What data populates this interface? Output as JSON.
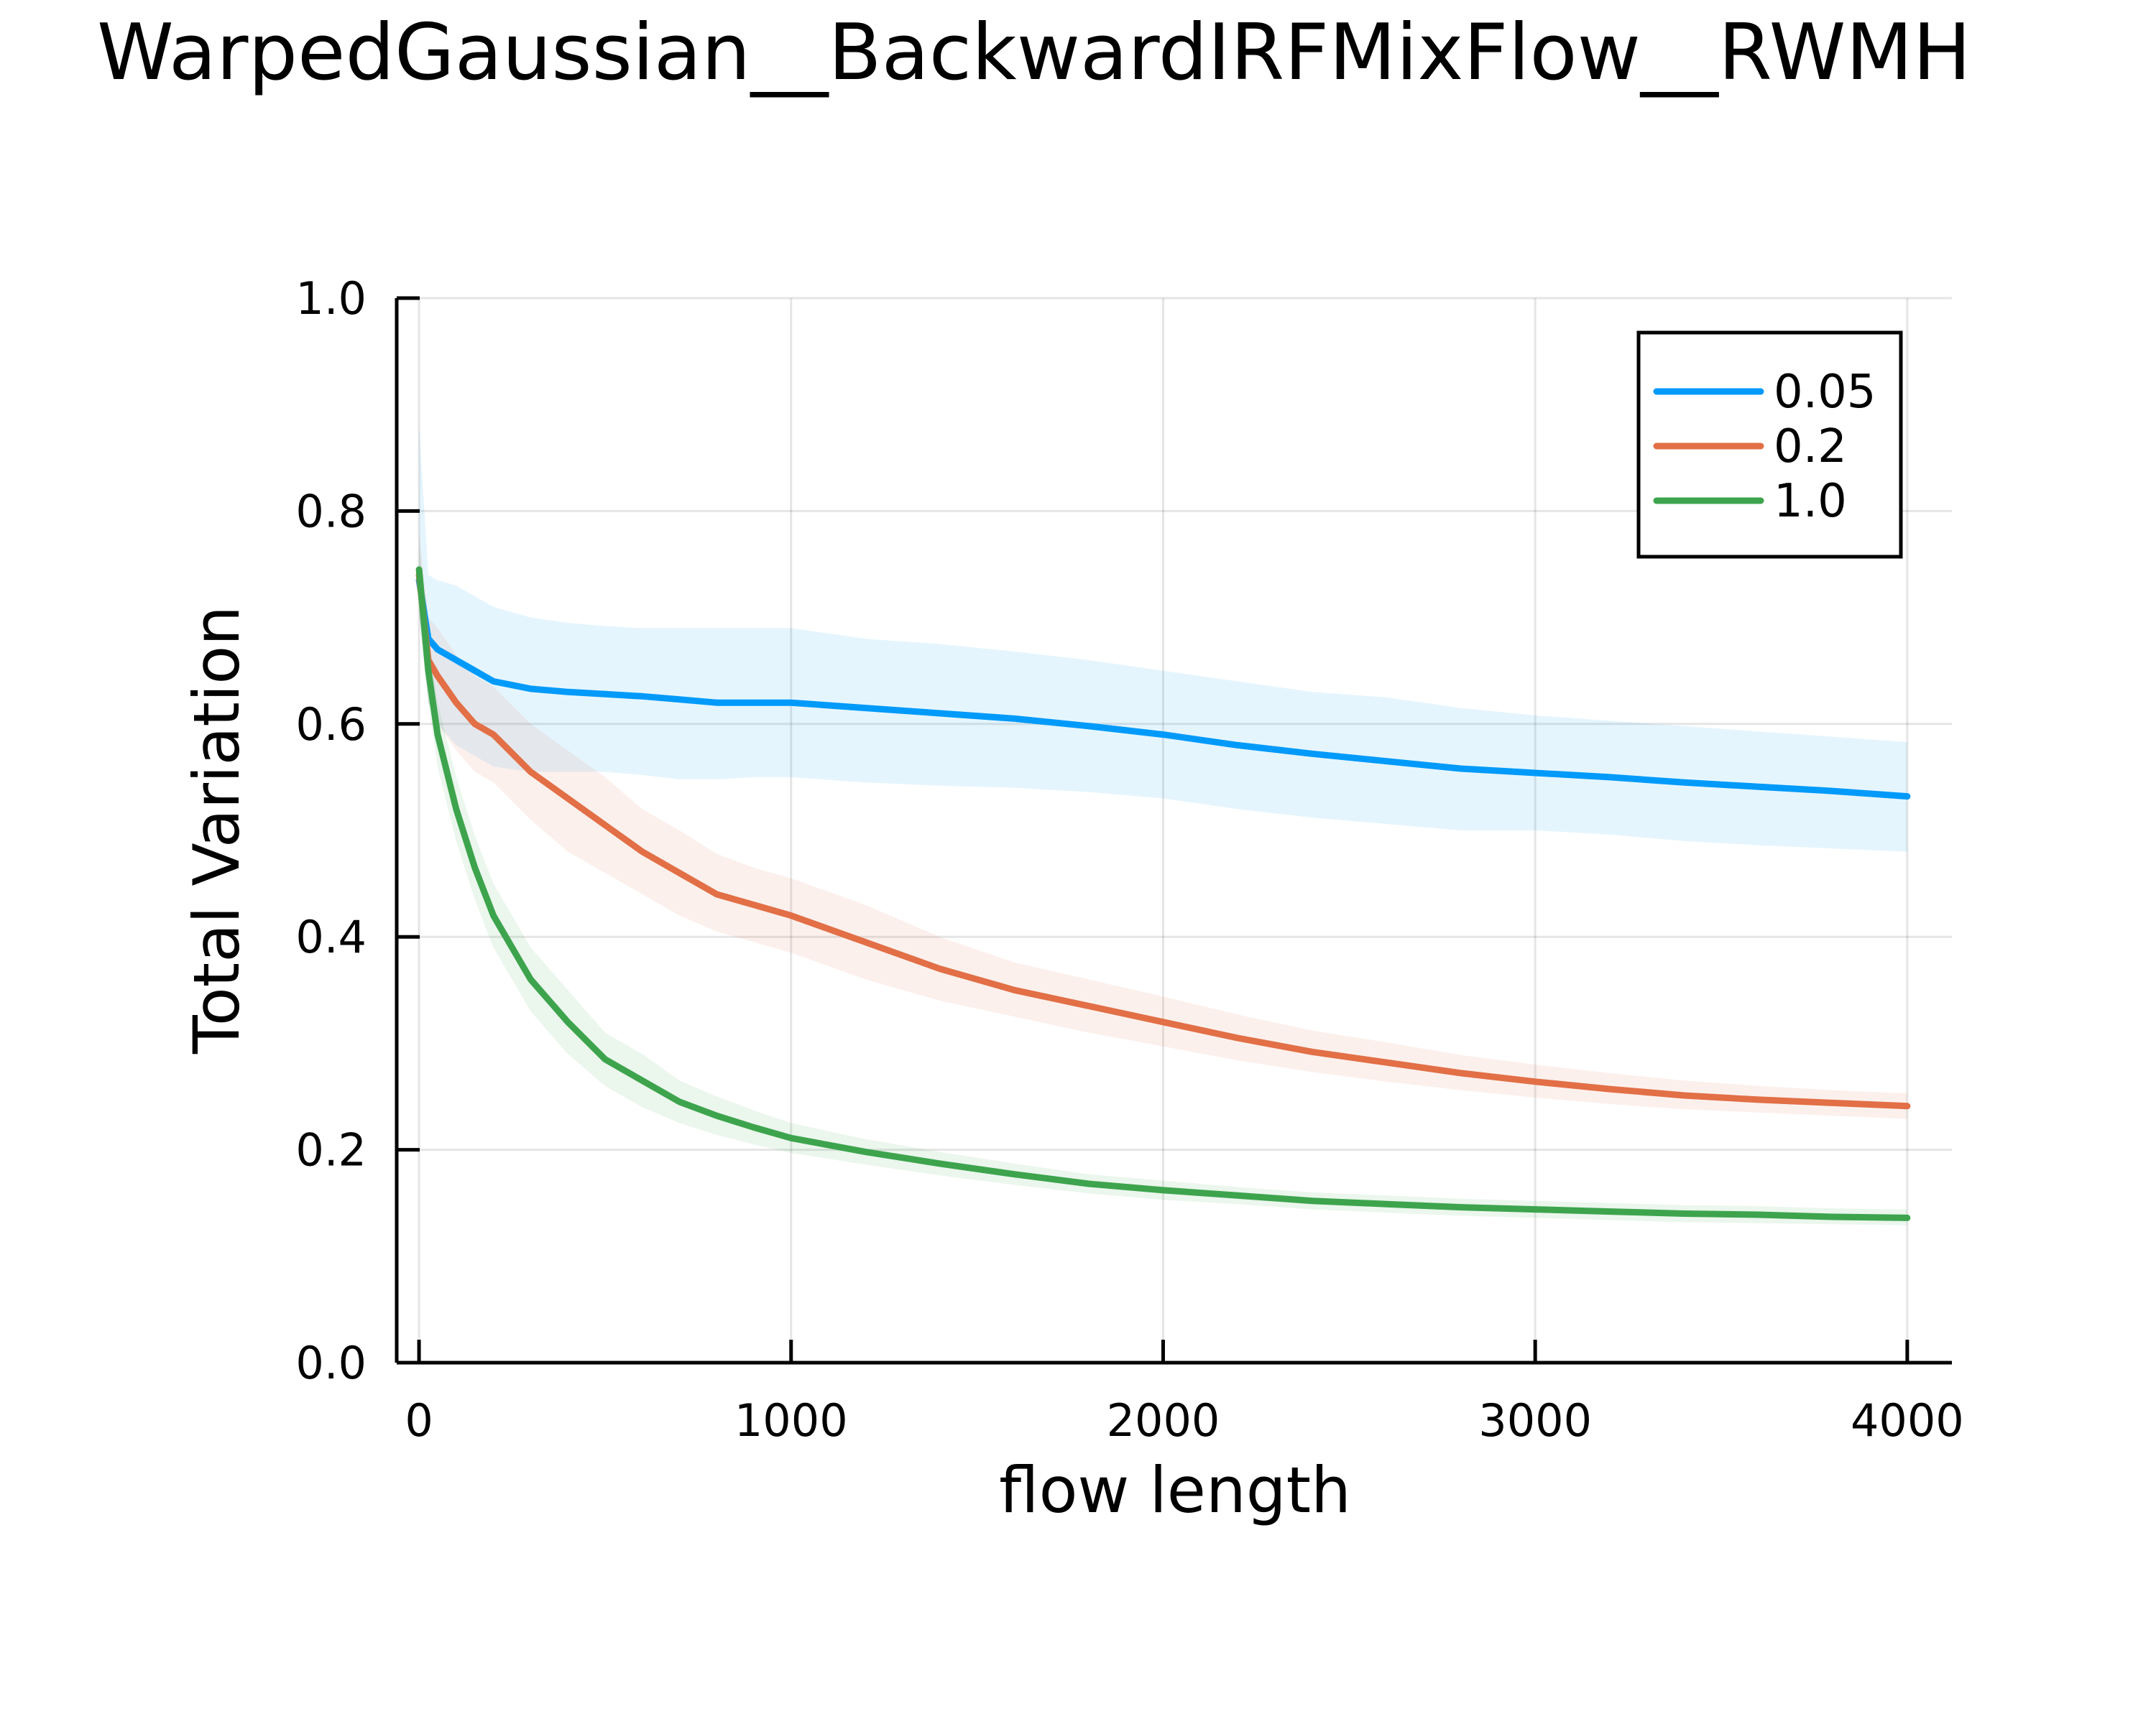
{
  "chart_data": {
    "type": "line",
    "title": "WarpedGaussian__BackwardIRFMixFlow__RWMH",
    "xlabel": "flow length",
    "ylabel": "Total Variation",
    "xlim": [
      -60,
      4120
    ],
    "ylim": [
      0.0,
      1.0
    ],
    "xticks": [
      0,
      1000,
      2000,
      3000,
      4000
    ],
    "xtick_labels": [
      "0",
      "1000",
      "2000",
      "3000",
      "4000"
    ],
    "yticks": [
      0.0,
      0.2,
      0.4,
      0.6,
      0.8,
      1.0
    ],
    "ytick_labels": [
      "0.0",
      "0.2",
      "0.4",
      "0.6",
      "0.8",
      "1.0"
    ],
    "grid": true,
    "legend_position": "top-right",
    "x": [
      0,
      25,
      50,
      100,
      150,
      200,
      300,
      400,
      500,
      600,
      700,
      800,
      900,
      1000,
      1200,
      1400,
      1600,
      1800,
      2000,
      2200,
      2400,
      2600,
      2800,
      3000,
      3200,
      3400,
      3600,
      3800,
      4000
    ],
    "series": [
      {
        "name": "0.05",
        "color": "#009AFA",
        "values": [
          0.735,
          0.68,
          0.67,
          0.66,
          0.65,
          0.64,
          0.633,
          0.63,
          0.628,
          0.626,
          0.623,
          0.62,
          0.62,
          0.62,
          0.615,
          0.61,
          0.605,
          0.598,
          0.59,
          0.58,
          0.572,
          0.565,
          0.558,
          0.554,
          0.55,
          0.545,
          0.541,
          0.537,
          0.532
        ],
        "lower": [
          0.7,
          0.62,
          0.6,
          0.58,
          0.57,
          0.56,
          0.555,
          0.555,
          0.555,
          0.552,
          0.548,
          0.548,
          0.55,
          0.55,
          0.545,
          0.542,
          0.54,
          0.536,
          0.53,
          0.52,
          0.512,
          0.506,
          0.5,
          0.5,
          0.496,
          0.49,
          0.486,
          0.483,
          0.48
        ],
        "upper": [
          0.88,
          0.74,
          0.735,
          0.73,
          0.72,
          0.71,
          0.7,
          0.695,
          0.692,
          0.69,
          0.69,
          0.69,
          0.69,
          0.69,
          0.68,
          0.675,
          0.668,
          0.66,
          0.65,
          0.64,
          0.63,
          0.625,
          0.615,
          0.608,
          0.603,
          0.598,
          0.593,
          0.588,
          0.583
        ]
      },
      {
        "name": "0.2",
        "color": "#E26F46",
        "values": [
          0.74,
          0.66,
          0.645,
          0.62,
          0.6,
          0.59,
          0.555,
          0.53,
          0.505,
          0.48,
          0.46,
          0.44,
          0.43,
          0.42,
          0.395,
          0.37,
          0.35,
          0.335,
          0.32,
          0.305,
          0.292,
          0.282,
          0.272,
          0.264,
          0.257,
          0.251,
          0.247,
          0.244,
          0.241
        ],
        "lower": [
          0.7,
          0.62,
          0.6,
          0.575,
          0.555,
          0.545,
          0.51,
          0.48,
          0.46,
          0.44,
          0.42,
          0.405,
          0.395,
          0.385,
          0.36,
          0.34,
          0.325,
          0.31,
          0.297,
          0.284,
          0.273,
          0.264,
          0.256,
          0.249,
          0.243,
          0.238,
          0.235,
          0.232,
          0.229
        ],
        "upper": [
          0.78,
          0.7,
          0.69,
          0.665,
          0.645,
          0.635,
          0.6,
          0.575,
          0.55,
          0.52,
          0.5,
          0.478,
          0.465,
          0.455,
          0.43,
          0.4,
          0.376,
          0.36,
          0.344,
          0.327,
          0.312,
          0.301,
          0.289,
          0.28,
          0.272,
          0.265,
          0.26,
          0.256,
          0.253
        ]
      },
      {
        "name": "1.0",
        "color": "#3DA44D",
        "values": [
          0.745,
          0.65,
          0.59,
          0.52,
          0.465,
          0.42,
          0.36,
          0.32,
          0.285,
          0.265,
          0.245,
          0.232,
          0.221,
          0.211,
          0.198,
          0.187,
          0.177,
          0.168,
          0.162,
          0.157,
          0.152,
          0.149,
          0.146,
          0.144,
          0.142,
          0.14,
          0.139,
          0.137,
          0.136
        ],
        "lower": [
          0.72,
          0.62,
          0.56,
          0.49,
          0.435,
          0.39,
          0.33,
          0.29,
          0.26,
          0.24,
          0.225,
          0.214,
          0.205,
          0.197,
          0.186,
          0.176,
          0.167,
          0.159,
          0.153,
          0.149,
          0.144,
          0.141,
          0.138,
          0.136,
          0.134,
          0.132,
          0.131,
          0.13,
          0.129
        ],
        "upper": [
          0.77,
          0.68,
          0.62,
          0.55,
          0.495,
          0.45,
          0.39,
          0.35,
          0.31,
          0.29,
          0.265,
          0.25,
          0.237,
          0.225,
          0.21,
          0.198,
          0.187,
          0.177,
          0.171,
          0.165,
          0.16,
          0.157,
          0.154,
          0.152,
          0.15,
          0.148,
          0.147,
          0.145,
          0.144
        ]
      }
    ]
  }
}
